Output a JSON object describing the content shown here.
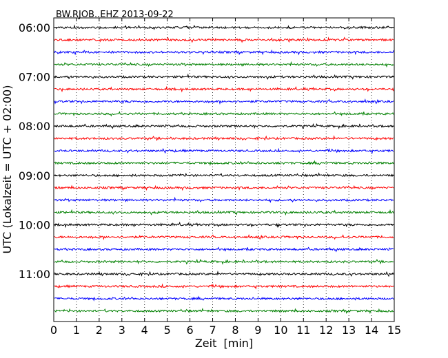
{
  "chart_data": {
    "type": "line",
    "title": "BW.RJOB..EHZ 2013-09-22",
    "xlabel": "Zeit  [min]",
    "ylabel": "UTC (Lokalzeit = UTC + 02:00)",
    "xlim": [
      0,
      15
    ],
    "x_ticks": [
      "0",
      "1",
      "2",
      "3",
      "4",
      "5",
      "6",
      "7",
      "8",
      "9",
      "10",
      "11",
      "12",
      "13",
      "14",
      "15"
    ],
    "y_ticks": [
      "06:00",
      "07:00",
      "08:00",
      "09:00",
      "10:00",
      "11:00"
    ],
    "start_time": "06:00",
    "end_time": "12:00",
    "trace_minutes": 15,
    "trace_colors": [
      "#000000",
      "#ff0000",
      "#0000ff",
      "#008000"
    ],
    "grid": "vertical dotted"
  }
}
